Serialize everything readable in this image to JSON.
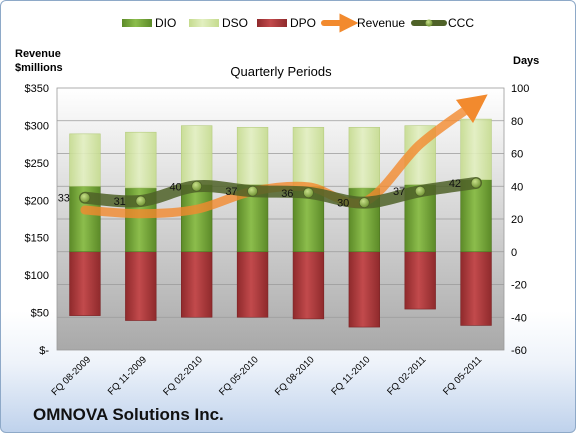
{
  "chart_data": {
    "type": "bar",
    "title": "Quarterly Periods",
    "left_axis_label_line1": "Revenue",
    "left_axis_label_line2": "$millions",
    "right_axis_label": "Days",
    "categories": [
      "FQ 08-2009",
      "FQ 11-2009",
      "FQ 02-2010",
      "FQ 05-2010",
      "FQ 08-2010",
      "FQ 11-2010",
      "FQ 02-2011",
      "FQ 05-2011"
    ],
    "series": [
      {
        "name": "DIO",
        "axis": "days",
        "values": [
          40,
          39,
          41,
          41,
          40,
          39,
          41,
          44
        ]
      },
      {
        "name": "DSO",
        "axis": "days",
        "values": [
          32,
          34,
          36,
          35,
          36,
          37,
          36,
          37
        ]
      },
      {
        "name": "DPO",
        "axis": "days",
        "values": [
          -39,
          -42,
          -40,
          -40,
          -41,
          -46,
          -35,
          -45
        ]
      },
      {
        "name": "Revenue",
        "axis": "revenue",
        "values": [
          187,
          182,
          188,
          212,
          218,
          198,
          275,
          330
        ]
      },
      {
        "name": "CCC",
        "axis": "days",
        "values": [
          33,
          31,
          40,
          37,
          36,
          30,
          37,
          42
        ]
      }
    ],
    "ccc_labels": [
      "33",
      "31",
      "40",
      "37",
      "36",
      "30",
      "37",
      "42"
    ],
    "left_ticks": [
      "$-",
      "$50",
      "$100",
      "$150",
      "$200",
      "$250",
      "$300",
      "$350"
    ],
    "right_ticks": [
      "-60",
      "-40",
      "-20",
      "0",
      "20",
      "40",
      "60",
      "80",
      "100"
    ],
    "ylim_left": [
      0,
      350
    ],
    "ylim_right": [
      -60,
      100
    ],
    "grid": true,
    "legend_position": "top",
    "colors": {
      "DIO": "#77a83a",
      "DSO": "#d5e6a5",
      "DPO": "#b33b3d",
      "Revenue": "#f28a2e",
      "CCC": "#4f6228"
    }
  },
  "footer": {
    "company": "OMNOVA Solutions Inc."
  }
}
